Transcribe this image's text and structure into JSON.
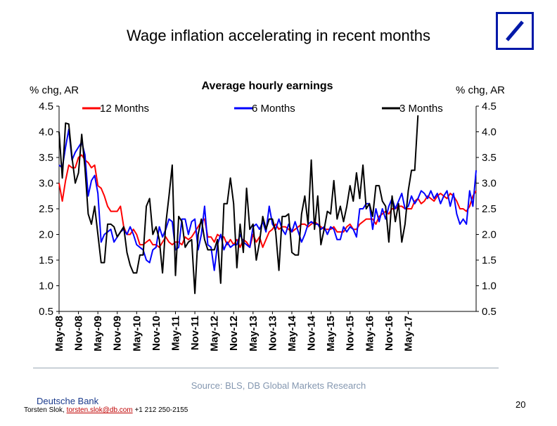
{
  "slide": {
    "title": "Wage inflation accelerating in recent months",
    "source": "Source: BLS, DB Global Markets Research",
    "brand": "Deutsche Bank",
    "author_name": "Torsten Slok, ",
    "author_email": "torsten.slok@db.com",
    "author_phone": " +1 212 250-2155",
    "page_number": "20"
  },
  "colors": {
    "red": "#ff0000",
    "blue": "#0000ff",
    "black": "#000000",
    "logo": "#0018a8"
  },
  "chart_data": {
    "type": "line",
    "title": "Average hourly earnings",
    "ylabel_left": "% chg, AR",
    "ylabel_right": "% chg, AR",
    "ylim": [
      0.5,
      4.5
    ],
    "yticks": [
      "0.5",
      "1.0",
      "1.5",
      "2.0",
      "2.5",
      "3.0",
      "3.5",
      "4.0",
      "4.5"
    ],
    "x_start": "May-08",
    "x_end": "Oct-17",
    "xtick_labels": [
      "May-08",
      "Nov-08",
      "May-09",
      "Nov-09",
      "May-10",
      "Nov-10",
      "May-11",
      "Nov-11",
      "May-12",
      "Nov-12",
      "May-13",
      "Nov-13",
      "May-14",
      "Nov-14",
      "May-15",
      "Nov-15",
      "May-16",
      "Nov-16",
      "May-17"
    ],
    "legend_position": "top",
    "series": [
      {
        "name": "12 Months",
        "color": "#ff0000",
        "values": [
          3.0,
          2.65,
          3.05,
          3.35,
          3.3,
          3.3,
          3.5,
          3.55,
          3.45,
          3.4,
          3.3,
          3.35,
          2.95,
          2.9,
          2.75,
          2.55,
          2.45,
          2.45,
          2.45,
          2.55,
          2.15,
          2.0,
          2.0,
          2.1,
          2.0,
          1.8,
          1.8,
          1.85,
          1.9,
          1.8,
          1.8,
          1.75,
          1.85,
          1.95,
          1.85,
          1.8,
          1.85,
          1.85,
          1.8,
          1.95,
          1.9,
          1.95,
          2.05,
          2.15,
          2.25,
          2.3,
          1.95,
          1.95,
          1.85,
          2.0,
          1.95,
          1.95,
          1.8,
          1.9,
          1.8,
          1.9,
          1.75,
          1.9,
          1.85,
          1.75,
          2.0,
          1.85,
          1.95,
          1.75,
          1.9,
          2.05,
          2.1,
          2.2,
          2.1,
          2.15,
          2.15,
          2.1,
          2.05,
          2.1,
          2.15,
          2.2,
          2.2,
          2.15,
          2.2,
          2.25,
          2.2,
          2.15,
          2.1,
          2.1,
          2.1,
          2.15,
          2.05,
          2.05,
          2.05,
          2.15,
          2.2,
          2.1,
          2.1,
          2.2,
          2.25,
          2.3,
          2.3,
          2.3,
          2.2,
          2.35,
          2.4,
          2.45,
          2.4,
          2.5,
          2.5,
          2.55,
          2.55,
          2.5,
          2.5,
          2.5,
          2.65,
          2.7,
          2.6,
          2.65,
          2.75,
          2.7,
          2.65,
          2.75,
          2.8,
          2.75,
          2.7,
          2.8,
          2.75,
          2.65,
          2.5,
          2.5,
          2.45,
          2.55,
          2.75,
          2.85
        ]
      },
      {
        "name": "6 Months",
        "color": "#0000ff",
        "values": [
          3.35,
          3.3,
          3.7,
          4.05,
          3.45,
          3.6,
          3.7,
          3.8,
          3.55,
          2.75,
          3.05,
          3.15,
          2.8,
          1.85,
          2.0,
          2.05,
          2.1,
          1.85,
          1.95,
          2.05,
          2.1,
          2.0,
          2.15,
          2.0,
          1.8,
          1.75,
          1.7,
          1.5,
          1.45,
          1.7,
          1.75,
          2.15,
          1.95,
          2.1,
          2.3,
          2.25,
          1.7,
          1.75,
          2.3,
          2.3,
          2.0,
          2.25,
          2.3,
          1.7,
          2.0,
          2.55,
          1.8,
          1.75,
          1.3,
          1.8,
          2.0,
          1.7,
          1.85,
          1.75,
          1.8,
          1.8,
          2.0,
          1.85,
          1.8,
          1.75,
          2.15,
          2.2,
          2.1,
          2.25,
          2.05,
          2.55,
          2.2,
          2.1,
          2.3,
          2.1,
          2.0,
          2.2,
          2.05,
          2.25,
          2.05,
          1.85,
          2.0,
          2.2,
          2.25,
          2.2,
          2.2,
          2.1,
          2.15,
          2.0,
          2.15,
          2.1,
          1.9,
          1.9,
          2.15,
          2.05,
          2.15,
          2.1,
          1.95,
          2.5,
          2.5,
          2.6,
          2.6,
          2.1,
          2.5,
          2.25,
          2.5,
          2.3,
          2.55,
          2.7,
          2.5,
          2.65,
          2.8,
          2.5,
          2.55,
          2.75,
          2.6,
          2.7,
          2.85,
          2.8,
          2.7,
          2.85,
          2.7,
          2.8,
          2.6,
          2.75,
          2.85,
          2.55,
          2.8,
          2.4,
          2.2,
          2.3,
          2.2,
          2.85,
          2.55,
          3.25
        ]
      },
      {
        "name": "3 Months",
        "color": "#000000",
        "values": [
          4.0,
          3.1,
          4.17,
          4.15,
          3.5,
          3.0,
          3.2,
          3.95,
          3.3,
          2.4,
          2.2,
          2.55,
          2.0,
          1.45,
          1.45,
          2.2,
          2.2,
          2.15,
          1.95,
          2.05,
          2.15,
          1.65,
          1.4,
          1.25,
          1.25,
          1.6,
          1.6,
          2.55,
          2.7,
          2.0,
          2.15,
          1.9,
          1.25,
          2.2,
          2.75,
          3.35,
          1.2,
          2.35,
          2.25,
          1.75,
          1.85,
          1.9,
          0.85,
          2.0,
          2.3,
          1.9,
          1.7,
          1.7,
          1.7,
          1.9,
          1.05,
          2.6,
          2.6,
          3.1,
          2.6,
          1.35,
          2.2,
          1.65,
          2.9,
          2.1,
          2.2,
          1.5,
          1.85,
          2.35,
          2.1,
          2.3,
          2.3,
          2.05,
          1.3,
          2.35,
          2.35,
          2.4,
          1.65,
          1.6,
          1.6,
          2.4,
          2.75,
          2.2,
          3.45,
          2.1,
          2.75,
          1.8,
          2.1,
          2.45,
          2.4,
          3.05,
          2.3,
          2.55,
          2.25,
          2.55,
          2.95,
          2.65,
          3.2,
          2.7,
          3.35,
          2.5,
          2.6,
          2.35,
          2.95,
          2.95,
          2.65,
          2.55,
          1.85,
          2.75,
          2.25,
          2.6,
          1.85,
          2.2,
          2.85,
          3.25,
          3.25,
          4.32
        ]
      }
    ]
  }
}
